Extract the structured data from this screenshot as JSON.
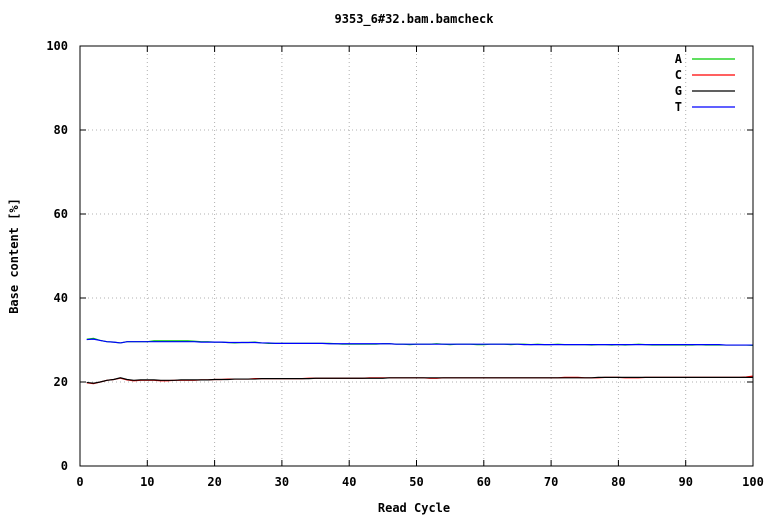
{
  "chart_data": {
    "type": "line",
    "title": "9353_6#32.bam.bamcheck",
    "xlabel": "Read Cycle",
    "ylabel": "Base content [%]",
    "xlim": [
      0,
      100
    ],
    "ylim": [
      0,
      100
    ],
    "x_ticks": [
      "0",
      "10",
      "20",
      "30",
      "40",
      "50",
      "60",
      "70",
      "80",
      "90",
      "100"
    ],
    "y_ticks": [
      "0",
      "20",
      "40",
      "60",
      "80",
      "100"
    ],
    "grid": true,
    "legend_position": "top-right",
    "x": [
      1,
      2,
      3,
      4,
      5,
      6,
      7,
      8,
      9,
      10,
      11,
      12,
      13,
      14,
      15,
      16,
      17,
      18,
      19,
      20,
      21,
      22,
      23,
      24,
      25,
      26,
      27,
      28,
      29,
      30,
      31,
      32,
      33,
      34,
      35,
      36,
      37,
      38,
      39,
      40,
      41,
      42,
      43,
      44,
      45,
      46,
      47,
      48,
      49,
      50,
      51,
      52,
      53,
      54,
      55,
      56,
      57,
      58,
      59,
      60,
      61,
      62,
      63,
      64,
      65,
      66,
      67,
      68,
      69,
      70,
      71,
      72,
      73,
      74,
      75,
      76,
      77,
      78,
      79,
      80,
      81,
      82,
      83,
      84,
      85,
      86,
      87,
      88,
      89,
      90,
      91,
      92,
      93,
      94,
      95,
      96,
      97,
      98,
      99,
      100
    ],
    "series": [
      {
        "name": "A",
        "color": "#00cc00",
        "values": [
          30.2,
          30.4,
          29.9,
          29.6,
          29.5,
          29.3,
          29.6,
          29.6,
          29.6,
          29.6,
          29.8,
          29.8,
          29.8,
          29.8,
          29.8,
          29.8,
          29.7,
          29.6,
          29.6,
          29.5,
          29.5,
          29.4,
          29.3,
          29.4,
          29.4,
          29.5,
          29.3,
          29.2,
          29.2,
          29.2,
          29.2,
          29.2,
          29.2,
          29.2,
          29.2,
          29.2,
          29.2,
          29.1,
          29.0,
          29.0,
          29.0,
          29.0,
          29.0,
          29.0,
          29.1,
          29.1,
          29.0,
          29.0,
          28.9,
          29.0,
          29.0,
          29.0,
          29.1,
          29.0,
          28.9,
          29.0,
          29.0,
          29.0,
          28.9,
          28.9,
          29.0,
          29.0,
          29.0,
          28.9,
          29.0,
          29.0,
          28.9,
          29.0,
          28.9,
          28.9,
          29.0,
          28.9,
          28.9,
          28.9,
          28.9,
          28.8,
          28.9,
          28.9,
          28.8,
          28.9,
          28.8,
          28.9,
          29.0,
          28.9,
          28.8,
          28.8,
          28.8,
          28.8,
          28.8,
          28.8,
          28.8,
          28.9,
          28.8,
          28.8,
          28.8,
          28.8,
          28.8,
          28.8,
          28.8,
          28.7
        ]
      },
      {
        "name": "C",
        "color": "#ff0000",
        "values": [
          19.8,
          19.6,
          20.0,
          20.4,
          20.6,
          20.9,
          20.5,
          20.3,
          20.4,
          20.4,
          20.4,
          20.3,
          20.3,
          20.4,
          20.4,
          20.4,
          20.4,
          20.5,
          20.5,
          20.6,
          20.6,
          20.7,
          20.7,
          20.7,
          20.7,
          20.8,
          20.8,
          20.8,
          20.8,
          20.8,
          20.8,
          20.8,
          20.8,
          20.9,
          20.9,
          20.9,
          20.9,
          20.9,
          20.9,
          20.9,
          20.9,
          20.9,
          21.0,
          21.0,
          21.0,
          21.0,
          21.0,
          21.0,
          21.0,
          21.0,
          21.0,
          20.9,
          20.9,
          21.0,
          21.0,
          21.0,
          21.0,
          21.0,
          21.0,
          21.0,
          21.0,
          21.0,
          21.0,
          21.0,
          21.0,
          21.0,
          21.0,
          21.0,
          21.0,
          21.0,
          21.0,
          21.1,
          21.1,
          21.1,
          21.0,
          21.0,
          21.0,
          21.1,
          21.1,
          21.1,
          21.0,
          21.0,
          21.0,
          21.1,
          21.1,
          21.1,
          21.1,
          21.1,
          21.1,
          21.1,
          21.1,
          21.1,
          21.1,
          21.1,
          21.1,
          21.1,
          21.1,
          21.1,
          21.2,
          21.4
        ]
      },
      {
        "name": "G",
        "color": "#000000",
        "values": [
          19.9,
          19.7,
          20.0,
          20.4,
          20.6,
          21.0,
          20.6,
          20.4,
          20.5,
          20.5,
          20.5,
          20.4,
          20.4,
          20.4,
          20.5,
          20.5,
          20.5,
          20.5,
          20.5,
          20.6,
          20.6,
          20.6,
          20.7,
          20.7,
          20.7,
          20.7,
          20.8,
          20.8,
          20.8,
          20.8,
          20.8,
          20.8,
          20.8,
          20.8,
          20.9,
          20.9,
          20.9,
          20.9,
          20.9,
          20.9,
          20.9,
          20.9,
          20.9,
          20.9,
          20.9,
          21.0,
          21.0,
          21.0,
          21.0,
          21.0,
          21.0,
          21.0,
          21.0,
          21.0,
          21.0,
          21.0,
          21.0,
          21.0,
          21.0,
          21.0,
          21.0,
          21.0,
          21.0,
          21.0,
          21.0,
          21.0,
          21.0,
          21.0,
          21.0,
          21.0,
          21.0,
          21.0,
          21.0,
          21.0,
          21.0,
          21.0,
          21.1,
          21.1,
          21.1,
          21.1,
          21.1,
          21.1,
          21.1,
          21.1,
          21.1,
          21.1,
          21.1,
          21.1,
          21.1,
          21.1,
          21.1,
          21.1,
          21.1,
          21.1,
          21.1,
          21.1,
          21.1,
          21.1,
          21.1,
          21.1
        ]
      },
      {
        "name": "T",
        "color": "#0000ff",
        "values": [
          30.1,
          30.2,
          29.9,
          29.6,
          29.5,
          29.3,
          29.6,
          29.6,
          29.6,
          29.6,
          29.6,
          29.6,
          29.6,
          29.6,
          29.6,
          29.6,
          29.6,
          29.5,
          29.5,
          29.5,
          29.5,
          29.4,
          29.4,
          29.4,
          29.4,
          29.4,
          29.3,
          29.3,
          29.2,
          29.2,
          29.2,
          29.2,
          29.2,
          29.2,
          29.2,
          29.2,
          29.1,
          29.1,
          29.1,
          29.1,
          29.1,
          29.1,
          29.1,
          29.1,
          29.1,
          29.1,
          29.0,
          29.0,
          29.0,
          29.0,
          29.0,
          29.0,
          29.0,
          29.0,
          29.0,
          29.0,
          29.0,
          29.0,
          29.0,
          29.0,
          29.0,
          29.0,
          29.0,
          29.0,
          29.0,
          28.9,
          28.9,
          28.9,
          28.9,
          28.9,
          28.9,
          28.9,
          28.9,
          28.9,
          28.9,
          28.9,
          28.9,
          28.9,
          28.9,
          28.9,
          28.9,
          28.9,
          28.9,
          28.9,
          28.9,
          28.9,
          28.9,
          28.9,
          28.9,
          28.9,
          28.9,
          28.9,
          28.9,
          28.9,
          28.9,
          28.8,
          28.8,
          28.8,
          28.8,
          28.8
        ]
      }
    ]
  }
}
